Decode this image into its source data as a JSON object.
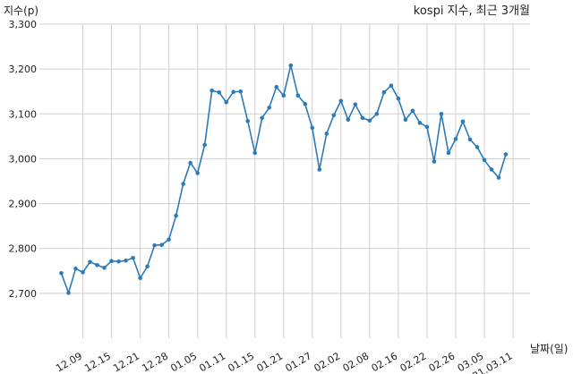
{
  "chart_data": {
    "type": "line",
    "title": "kospi 지수, 최근 3개월",
    "ylabel": "지수(p)",
    "xlabel": "날짜(일)",
    "ylim": [
      2600,
      3300
    ],
    "y_ticks": [
      2700,
      2800,
      2900,
      3000,
      3100,
      3200,
      3300
    ],
    "y_tick_labels": [
      "2,700",
      "2,800",
      "2,900",
      "3,000",
      "3,100",
      "3,200",
      "3,300"
    ],
    "x_tick_labels": [
      "12.09",
      "12.15",
      "12.21",
      "12.28",
      "01.05",
      "01.11",
      "01.15",
      "01.21",
      "01.27",
      "02.02",
      "02.08",
      "02.16",
      "02.22",
      "02.26",
      "03.05",
      "21.03.11"
    ],
    "x_tick_indices": [
      3,
      7,
      11,
      15,
      19,
      23,
      27,
      31,
      35,
      39,
      43,
      47,
      51,
      55,
      59,
      63
    ],
    "grid": true,
    "line_color": "#2b7bb9",
    "values": [
      2745,
      2701,
      2755,
      2747,
      2770,
      2763,
      2757,
      2772,
      2771,
      2773,
      2779,
      2734,
      2760,
      2807,
      2808,
      2820,
      2873,
      2944,
      2991,
      2968,
      3031,
      3152,
      3148,
      3126,
      3149,
      3150,
      3084,
      3013,
      3091,
      3114,
      3160,
      3141,
      3208,
      3141,
      3122,
      3069,
      2976,
      3056,
      3097,
      3129,
      3087,
      3121,
      3091,
      3085,
      3100,
      3148,
      3163,
      3134,
      3087,
      3107,
      3080,
      3071,
      2994,
      3100,
      3013,
      3044,
      3083,
      3043,
      3026,
      2997,
      2976,
      2958,
      3010
    ]
  }
}
